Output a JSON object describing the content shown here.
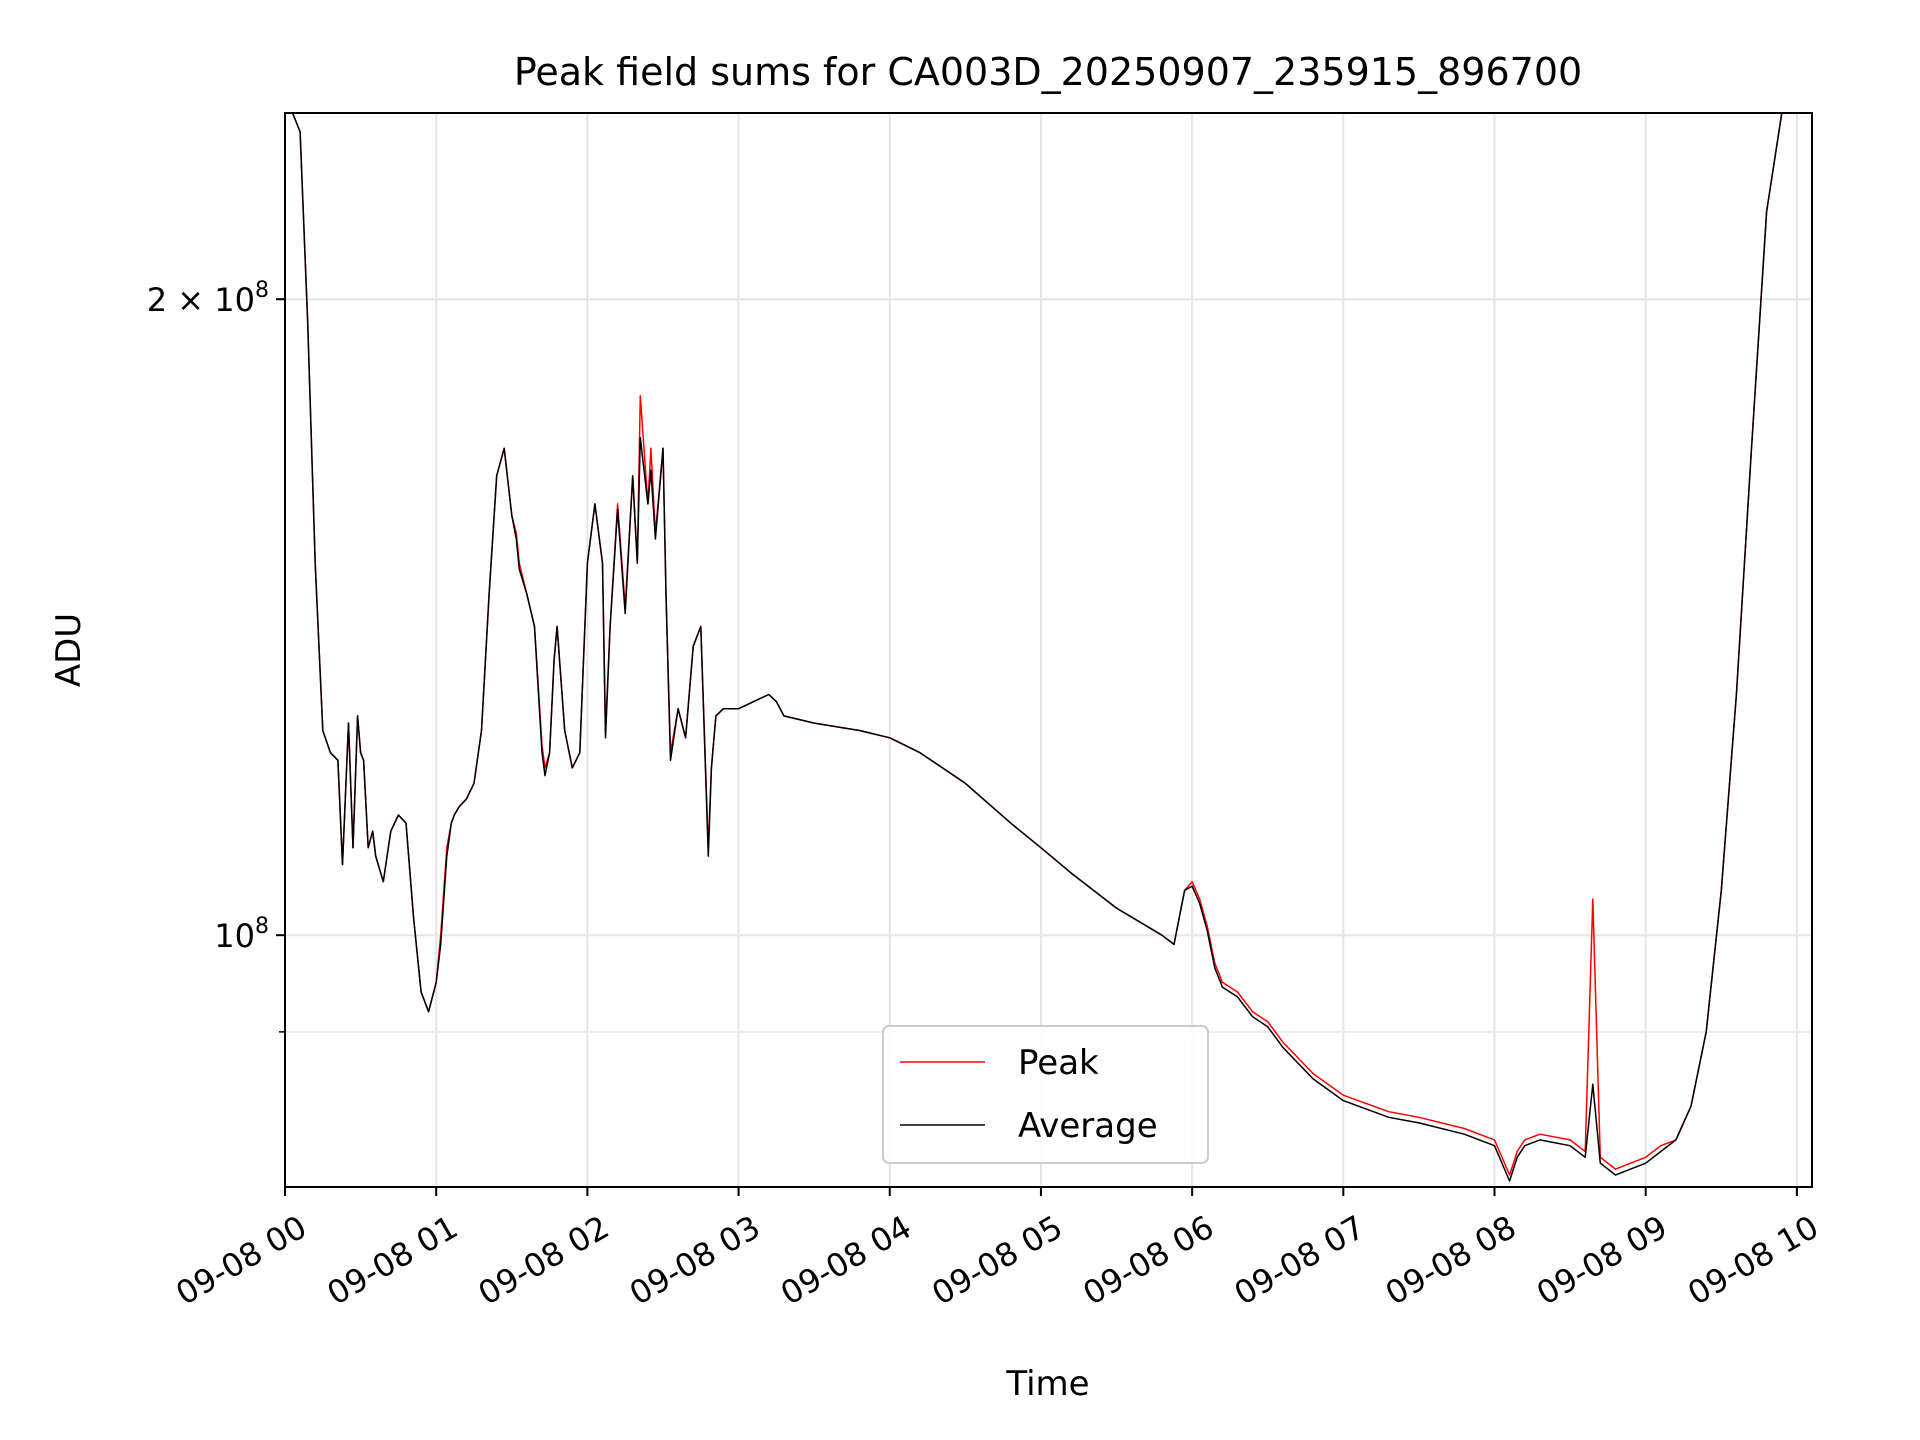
{
  "chart_data": {
    "type": "line",
    "title": "Peak field sums for CA003D_20250907_235915_896700",
    "xlabel": "Time",
    "ylabel": "ADU",
    "x_axis_kind": "datetime (hours)",
    "x_ticks": [
      "09-08 00",
      "09-08 01",
      "09-08 02",
      "09-08 03",
      "09-08 04",
      "09-08 05",
      "09-08 06",
      "09-08 07",
      "09-08 08",
      "09-08 09",
      "09-08 10"
    ],
    "y_scale": "log",
    "y_ticks": [
      {
        "value": 100000000,
        "base": "10",
        "exp": "8"
      },
      {
        "value": 200000000,
        "mant": "2",
        "base": "10",
        "exp": "8"
      }
    ],
    "y_minor_ticks": [
      90000000
    ],
    "xlim": [
      0,
      10.1
    ],
    "ylim": [
      76000000,
      245000000
    ],
    "grid": true,
    "legend": {
      "placement": "lower center"
    },
    "x_hours": [
      0,
      0.05,
      0.1,
      0.15,
      0.2,
      0.25,
      0.3,
      0.35,
      0.38,
      0.42,
      0.45,
      0.48,
      0.5,
      0.52,
      0.55,
      0.58,
      0.6,
      0.65,
      0.7,
      0.75,
      0.8,
      0.85,
      0.9,
      0.95,
      1.0,
      1.03,
      1.07,
      1.1,
      1.12,
      1.15,
      1.2,
      1.25,
      1.3,
      1.35,
      1.4,
      1.45,
      1.5,
      1.53,
      1.55,
      1.6,
      1.65,
      1.7,
      1.72,
      1.75,
      1.78,
      1.8,
      1.85,
      1.9,
      1.95,
      2.0,
      2.05,
      2.1,
      2.12,
      2.15,
      2.2,
      2.25,
      2.3,
      2.33,
      2.35,
      2.4,
      2.42,
      2.45,
      2.5,
      2.52,
      2.55,
      2.6,
      2.65,
      2.7,
      2.75,
      2.8,
      2.82,
      2.85,
      2.9,
      3.0,
      3.1,
      3.2,
      3.25,
      3.3,
      3.5,
      3.8,
      4.0,
      4.2,
      4.5,
      4.8,
      5.0,
      5.2,
      5.5,
      5.8,
      5.88,
      5.95,
      6.0,
      6.05,
      6.1,
      6.15,
      6.2,
      6.3,
      6.4,
      6.5,
      6.6,
      6.8,
      7.0,
      7.3,
      7.5,
      7.8,
      8.0,
      8.1,
      8.15,
      8.2,
      8.3,
      8.5,
      8.6,
      8.65,
      8.7,
      8.8,
      8.9,
      9.0,
      9.1,
      9.2,
      9.3,
      9.4,
      9.5,
      9.6,
      9.7,
      9.8,
      9.9,
      10.0
    ],
    "series": [
      {
        "name": "Peak",
        "color": "#ff0000",
        "values": [
          245000000,
          245000000,
          240000000,
          195000000,
          150000000,
          125000000,
          122000000,
          121000000,
          108000000,
          126000000,
          110000000,
          127000000,
          122000000,
          121000000,
          110000000,
          112000000,
          109000000,
          106000000,
          112000000,
          114000000,
          113000000,
          102000000,
          94000000,
          92000000,
          95000000,
          100000000,
          110000000,
          113000000,
          114000000,
          115000000,
          116000000,
          118000000,
          125000000,
          145000000,
          165000000,
          170000000,
          158000000,
          155000000,
          150000000,
          145000000,
          140000000,
          123000000,
          120000000,
          122000000,
          135000000,
          140000000,
          125000000,
          120000000,
          122000000,
          150000000,
          160000000,
          150000000,
          125000000,
          140000000,
          160000000,
          143000000,
          165000000,
          150000000,
          180000000,
          160000000,
          170000000,
          155000000,
          170000000,
          145000000,
          122000000,
          128000000,
          124000000,
          137000000,
          140000000,
          110000000,
          120000000,
          127000000,
          128000000,
          128000000,
          129000000,
          130000000,
          129000000,
          127000000,
          126000000,
          125000000,
          124000000,
          122000000,
          118000000,
          113000000,
          110000000,
          107000000,
          103000000,
          100000000,
          99000000,
          105000000,
          106000000,
          104000000,
          101000000,
          97000000,
          95000000,
          94000000,
          92000000,
          91000000,
          89000000,
          86000000,
          84000000,
          82500000,
          82000000,
          81000000,
          80000000,
          77000000,
          79000000,
          80000000,
          80500000,
          80000000,
          79000000,
          104000000,
          78500000,
          77500000,
          78000000,
          78500000,
          79500000,
          80000000,
          83000000,
          90000000,
          105000000,
          130000000,
          170000000,
          220000000,
          245000000,
          245000000
        ]
      },
      {
        "name": "Average",
        "color": "#000000",
        "values": [
          245000000,
          245000000,
          240000000,
          195000000,
          150000000,
          125000000,
          122000000,
          121000000,
          108000000,
          126000000,
          110000000,
          127000000,
          122000000,
          121000000,
          110000000,
          112000000,
          109000000,
          106000000,
          112000000,
          114000000,
          113000000,
          102000000,
          94000000,
          92000000,
          95000000,
          99000000,
          109000000,
          113000000,
          114000000,
          115000000,
          116000000,
          118000000,
          125000000,
          145000000,
          165000000,
          170000000,
          158000000,
          154000000,
          149000000,
          145000000,
          140000000,
          122000000,
          119000000,
          122000000,
          135000000,
          140000000,
          125000000,
          120000000,
          122000000,
          150000000,
          160000000,
          150000000,
          124000000,
          140000000,
          159000000,
          142000000,
          165000000,
          150000000,
          172000000,
          160000000,
          166000000,
          154000000,
          170000000,
          145000000,
          121000000,
          128000000,
          124000000,
          137000000,
          140000000,
          109000000,
          120000000,
          127000000,
          128000000,
          128000000,
          129000000,
          130000000,
          129000000,
          127000000,
          126000000,
          125000000,
          124000000,
          122000000,
          118000000,
          113000000,
          110000000,
          107000000,
          103000000,
          100000000,
          99000000,
          105000000,
          105500000,
          103500000,
          100500000,
          96500000,
          94500000,
          93500000,
          91500000,
          90500000,
          88500000,
          85500000,
          83500000,
          82000000,
          81500000,
          80500000,
          79500000,
          76500000,
          78500000,
          79500000,
          80000000,
          79500000,
          78500000,
          85000000,
          78000000,
          77000000,
          77500000,
          78000000,
          79000000,
          80000000,
          83000000,
          90000000,
          105000000,
          130000000,
          170000000,
          220000000,
          245000000,
          245000000
        ]
      }
    ]
  }
}
